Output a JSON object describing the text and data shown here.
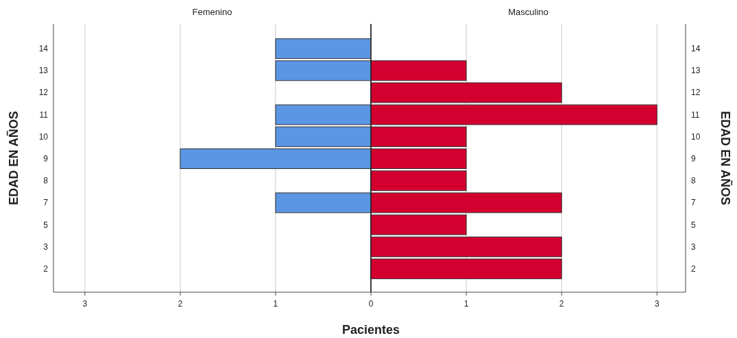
{
  "chart_data": [
    {
      "type": "bar",
      "orientation": "horizontal",
      "xlabel": "Pacientes",
      "ylabel": "EDAD EN AÑOS",
      "categories": [
        "14",
        "13",
        "12",
        "11",
        "10",
        "9",
        "8",
        "7",
        "5",
        "3",
        "2"
      ],
      "series": [
        {
          "name": "Femenino",
          "color": "#5a96e3",
          "values": [
            1,
            1,
            null,
            1,
            1,
            2,
            null,
            1,
            null,
            null,
            null
          ]
        }
      ],
      "xlim": [
        3.33,
        0
      ],
      "xticks": [
        3,
        2,
        1
      ],
      "grid": "x",
      "legend": "top"
    },
    {
      "type": "bar",
      "orientation": "horizontal",
      "y2label": "EDAD EN AÑOS",
      "categories": [
        "14",
        "13",
        "12",
        "11",
        "10",
        "9",
        "8",
        "7",
        "5",
        "3",
        "2"
      ],
      "series": [
        {
          "name": "Masculino",
          "color": "#d3002f",
          "values": [
            null,
            1,
            2,
            3,
            1,
            1,
            1,
            2,
            1,
            2,
            2
          ]
        }
      ],
      "xlim": [
        0,
        3.3
      ],
      "xticks": [
        0,
        1,
        2,
        3
      ],
      "grid": "x",
      "legend": "top"
    }
  ]
}
